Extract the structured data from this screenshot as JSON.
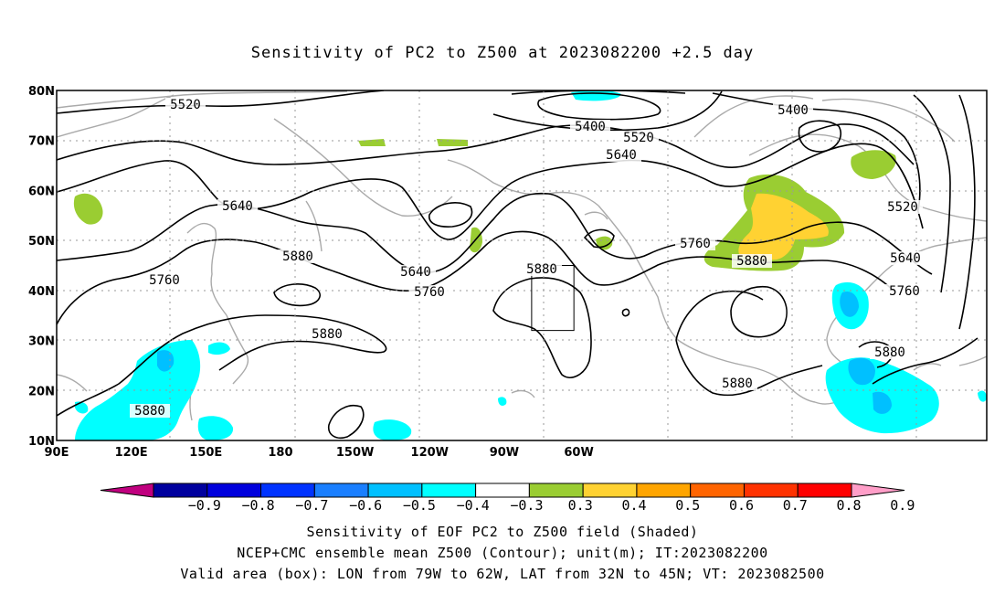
{
  "title": "Sensitivity of PC2 to Z500 at 2023082200 +2.5 day",
  "map": {
    "lat_labels": [
      "80N",
      "70N",
      "60N",
      "50N",
      "40N",
      "30N",
      "20N",
      "10N"
    ],
    "lon_labels": [
      "90E",
      "120E",
      "150E",
      "180",
      "150W",
      "120W",
      "90W",
      "60W"
    ],
    "contour_labels": [
      "5520",
      "5400",
      "5520",
      "5400",
      "5640",
      "5520",
      "5640",
      "5760",
      "5880",
      "5640",
      "5760",
      "5880",
      "5760",
      "5880",
      "5640",
      "5760",
      "5880",
      "5880",
      "5880",
      "5880"
    ],
    "valid_box": {
      "lon": [
        -79,
        -62
      ],
      "lat": [
        32,
        45
      ]
    }
  },
  "colorbar": {
    "labels": [
      "−0.9",
      "−0.8",
      "−0.7",
      "−0.6",
      "−0.5",
      "−0.4",
      "−0.3",
      "0.3",
      "0.4",
      "0.5",
      "0.6",
      "0.7",
      "0.8",
      "0.9"
    ],
    "colors": [
      "#c0007f",
      "#00009e",
      "#0000dd",
      "#0033ff",
      "#1a7fff",
      "#00c0ff",
      "#00ffff",
      "#ffffff",
      "#9acd32",
      "#ffd232",
      "#ffa500",
      "#ff6400",
      "#ff3200",
      "#ff0000",
      "#ff9ec8"
    ]
  },
  "captions": {
    "line1": "Sensitivity of EOF PC2 to Z500 field (Shaded)",
    "line2": "NCEP+CMC ensemble mean Z500 (Contour); unit(m); IT:2023082200",
    "line3": "Valid area (box): LON from 79W to 62W, LAT from 32N to 45N; VT: 2023082500"
  }
}
